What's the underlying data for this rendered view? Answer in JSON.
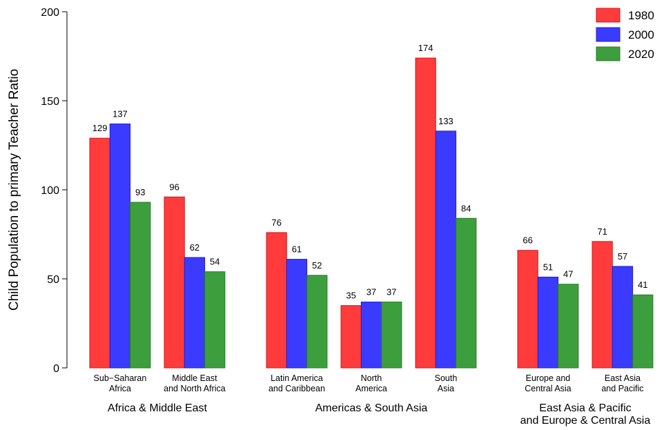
{
  "chart_data": {
    "type": "bar",
    "y_label": "Child Population to primary Teacher Ratio",
    "groups": [
      {
        "name": "Africa & Middle East",
        "categories": [
          "Sub−Saharan\nAfrica",
          "Middle East\nand North Africa"
        ]
      },
      {
        "name": "Americas & South Asia",
        "categories": [
          "Latin America\nand Caribbean",
          "North\nAmerica",
          "South\nAsia"
        ]
      },
      {
        "name": "East Asia & Pacific\nand Europe & Central Asia",
        "categories": [
          "Europe and\nCentral Asia",
          "East Asia\nand Pacific"
        ]
      }
    ],
    "series": [
      {
        "name": "1980",
        "color": "#ff3b3b",
        "values": [
          129,
          96,
          76,
          35,
          174,
          66,
          71
        ]
      },
      {
        "name": "2000",
        "color": "#3b3bff",
        "values": [
          137,
          62,
          61,
          37,
          133,
          51,
          57
        ]
      },
      {
        "name": "2020",
        "color": "#3d9e3d",
        "values": [
          93,
          54,
          52,
          37,
          84,
          47,
          41
        ]
      }
    ],
    "ylim": [
      0,
      200
    ],
    "yticks": [
      0,
      50,
      100,
      150,
      200
    ],
    "legend": "top-right"
  }
}
